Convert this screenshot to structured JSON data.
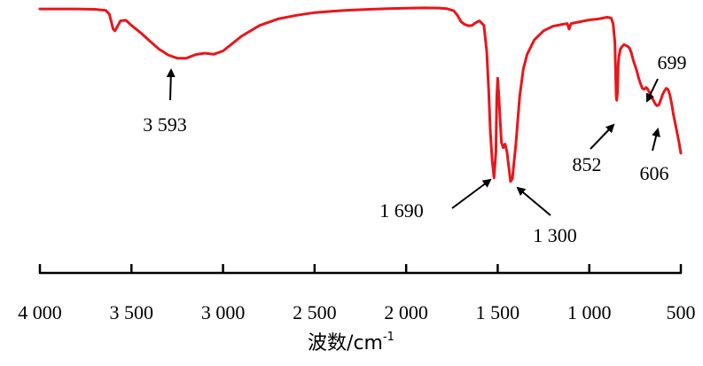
{
  "chart_data": {
    "type": "line",
    "xlabel": "波数/cm",
    "xlabel_sup": "-1",
    "xlim": [
      4000,
      500
    ],
    "x_reversed": true,
    "x_ticks": [
      {
        "value": 4000,
        "label": "4 000"
      },
      {
        "value": 3500,
        "label": "3 500"
      },
      {
        "value": 3000,
        "label": "3 000"
      },
      {
        "value": 2500,
        "label": "2 500"
      },
      {
        "value": 2000,
        "label": "2 000"
      },
      {
        "value": 1500,
        "label": "1 500"
      },
      {
        "value": 1000,
        "label": "1 000"
      },
      {
        "value": 500,
        "label": "500"
      }
    ],
    "ylim": [
      0,
      100
    ],
    "y_axis_visible": false,
    "grid": false,
    "series": [
      {
        "color": "#e8161b",
        "x": [
          4000,
          3800,
          3700,
          3640,
          3620,
          3600,
          3590,
          3560,
          3530,
          3500,
          3450,
          3400,
          3350,
          3300,
          3250,
          3200,
          3150,
          3100,
          3050,
          3000,
          2950,
          2900,
          2800,
          2700,
          2600,
          2500,
          2400,
          2300,
          2200,
          2100,
          2000,
          1900,
          1820,
          1780,
          1740,
          1720,
          1700,
          1680,
          1660,
          1640,
          1620,
          1600,
          1575,
          1560,
          1550,
          1540,
          1530,
          1520,
          1510,
          1505,
          1500,
          1495,
          1480,
          1470,
          1460,
          1450,
          1440,
          1430,
          1420,
          1400,
          1380,
          1360,
          1340,
          1300,
          1250,
          1200,
          1150,
          1120,
          1110,
          1100,
          1050,
          1000,
          950,
          900,
          880,
          870,
          860,
          853,
          850,
          846,
          842,
          838,
          830,
          820,
          810,
          800,
          790,
          780,
          770,
          760,
          750,
          740,
          730,
          720,
          710,
          700,
          690,
          680,
          670,
          650,
          640,
          630,
          620,
          610,
          600,
          590,
          580,
          570,
          560,
          550,
          540,
          530,
          520,
          510,
          500
        ],
        "y": [
          98.0,
          98.0,
          97.8,
          97.2,
          95.0,
          87.0,
          86.0,
          91.5,
          91.8,
          89.0,
          85.0,
          80.5,
          76.0,
          72.8,
          71.0,
          71.0,
          73.0,
          73.8,
          73.2,
          75.0,
          79.0,
          83.0,
          89.0,
          92.5,
          94.5,
          96.0,
          96.8,
          97.4,
          97.8,
          98.2,
          98.4,
          98.6,
          98.5,
          98.2,
          97.0,
          94.5,
          91.0,
          89.5,
          88.8,
          89.0,
          90.5,
          91.5,
          89.0,
          75.0,
          55.0,
          30.0,
          15.0,
          5.5,
          20.0,
          50.0,
          60.0,
          52.0,
          25.0,
          22.0,
          24.0,
          20.0,
          12.0,
          3.5,
          5.0,
          25.0,
          50.0,
          65.0,
          73.0,
          81.0,
          86.0,
          88.5,
          89.5,
          90.0,
          87.0,
          90.0,
          91.0,
          92.0,
          92.5,
          93.5,
          93.0,
          90.0,
          80.0,
          50.0,
          48.0,
          52.0,
          68.0,
          72.0,
          76.0,
          77.5,
          78.5,
          78.0,
          77.5,
          76.5,
          74.0,
          70.0,
          67.0,
          64.0,
          60.0,
          57.0,
          54.5,
          54.0,
          55.0,
          54.0,
          52.0,
          48.0,
          46.0,
          45.0,
          45.5,
          48.0,
          51.0,
          53.0,
          54.5,
          54.0,
          51.0,
          46.0,
          40.0,
          35.0,
          30.0,
          25.0,
          19.0
        ]
      }
    ],
    "annotations": [
      {
        "label": "3 593",
        "x": 3593
      },
      {
        "label": "1 690",
        "x": 1690
      },
      {
        "label": "1 300",
        "x": 1300
      },
      {
        "label": "852",
        "x": 852
      },
      {
        "label": "699",
        "x": 699
      },
      {
        "label": "606",
        "x": 606
      }
    ]
  }
}
